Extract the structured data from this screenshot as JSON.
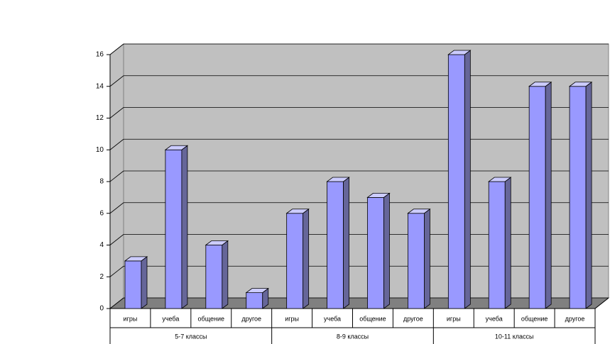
{
  "chart_data": {
    "type": "bar3d",
    "categories": [
      "игры",
      "учеба",
      "общение",
      "другое",
      "игры",
      "учеба",
      "общение",
      "другое",
      "игры",
      "учеба",
      "общение",
      "другое"
    ],
    "groups": [
      "5-7 классы",
      "8-9 классы",
      "10-11 классы"
    ],
    "values": [
      3,
      10,
      4,
      1,
      6,
      8,
      7,
      6,
      16,
      8,
      14,
      14
    ],
    "color": "#9999ff",
    "ylim": [
      0,
      16
    ],
    "yticks": [
      0,
      2,
      4,
      6,
      8,
      10,
      12,
      14,
      16
    ],
    "grid": true
  }
}
